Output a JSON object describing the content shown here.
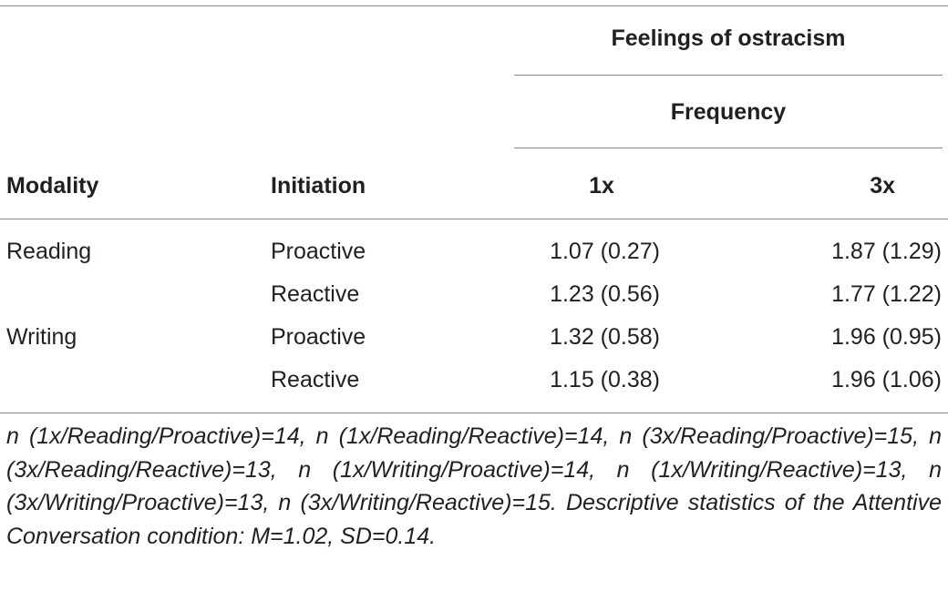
{
  "table": {
    "header": {
      "group_label": "Feelings of ostracism",
      "subgroup_label": "Frequency",
      "col_modality": "Modality",
      "col_initiation": "Initiation",
      "col_1x": "1x",
      "col_3x": "3x"
    },
    "rows": [
      {
        "modality": "Reading",
        "initiation": "Proactive",
        "v1x": "1.07 (0.27)",
        "v3x": "1.87 (1.29)"
      },
      {
        "modality": "",
        "initiation": "Reactive",
        "v1x": "1.23 (0.56)",
        "v3x": "1.77 (1.22)"
      },
      {
        "modality": "Writing",
        "initiation": "Proactive",
        "v1x": "1.32 (0.58)",
        "v3x": "1.96 (0.95)"
      },
      {
        "modality": "",
        "initiation": "Reactive",
        "v1x": "1.15 (0.38)",
        "v3x": "1.96 (1.06)"
      }
    ],
    "footnote": "n (1x/Reading/Proactive)=14, n (1x/Reading/Reactive)=14, n (3x/Reading/Proactive)=15, n (3x/Reading/Reactive)=13, n (1x/Writing/Proactive)=14, n (1x/Writing/Reactive)=13, n (3x/Writing/Proactive)=13, n (3x/Writing/Reactive)=15. Descriptive statistics of the Attentive Conversation condition: M=1.02, SD=0.14."
  }
}
